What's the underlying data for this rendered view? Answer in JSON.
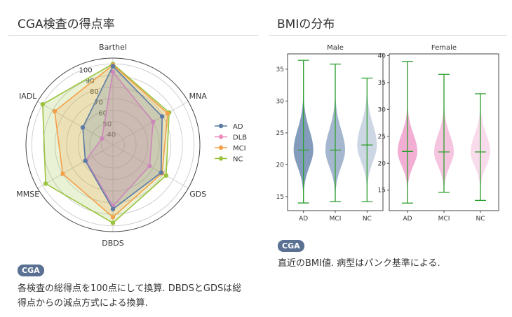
{
  "left_panel": {
    "title": "CGA検査の得点率",
    "badge": "CGA",
    "note_line1": "各検査の総得点を100点にして換算. DBDSとGDSは総",
    "note_line2": "得点からの減点方式による換算."
  },
  "right_panel": {
    "title": "BMIの分布",
    "badge": "CGA",
    "note": "直近のBMI値. 病型はパンク基準による."
  },
  "chart_data": [
    {
      "type": "radar",
      "axes": [
        "Barthel",
        "MNA",
        "GDS",
        "DBDS",
        "MMSE",
        "IADL"
      ],
      "rlim": [
        30,
        105
      ],
      "rticks": [
        40,
        50,
        60,
        70,
        80,
        90,
        100
      ],
      "rtick_labels": [
        "40",
        "50",
        "60",
        "70",
        "80",
        "90",
        "100"
      ],
      "legend_position": "right",
      "series": [
        {
          "name": "AD",
          "color": "#5b7ba6",
          "values": [
            98,
            79,
            78,
            85.5,
            57.5,
            60
          ]
        },
        {
          "name": "DLB",
          "color": "#ec8cc0",
          "values": [
            93,
            70,
            66.5,
            83,
            57,
            41
          ]
        },
        {
          "name": "MCI",
          "color": "#f3a04a",
          "values": [
            99,
            84.5,
            79,
            92.5,
            80,
            88
          ]
        },
        {
          "name": "NC",
          "color": "#9bc33f",
          "values": [
            100,
            86,
            83,
            97.5,
            97,
            100
          ]
        }
      ]
    },
    {
      "type": "violin",
      "panels": [
        {
          "title": "Male",
          "ylim": [
            12.8,
            37.4
          ],
          "yticks": [
            15,
            20,
            25,
            30,
            35
          ],
          "color": "#5b7ba6",
          "categories": [
            "AD",
            "MCI",
            "NC"
          ],
          "alphas": [
            0.75,
            0.55,
            0.3
          ],
          "min": [
            14,
            14.2,
            14.2
          ],
          "max": [
            36.4,
            35.8,
            33.6
          ],
          "median": [
            22.3,
            22.3,
            23.1
          ]
        },
        {
          "title": "Female",
          "ylim": [
            11.2,
            40.3
          ],
          "yticks": [
            15,
            20,
            25,
            30,
            35,
            40
          ],
          "color": "#ec8cc0",
          "categories": [
            "AD",
            "MCI",
            "NC"
          ],
          "alphas": [
            0.7,
            0.5,
            0.3
          ],
          "min": [
            12.6,
            14.6,
            13.1
          ],
          "max": [
            38.9,
            36.5,
            32.9
          ],
          "median": [
            22.2,
            22.1,
            22.1
          ]
        }
      ],
      "whisker_color": "#2ca02c"
    }
  ]
}
